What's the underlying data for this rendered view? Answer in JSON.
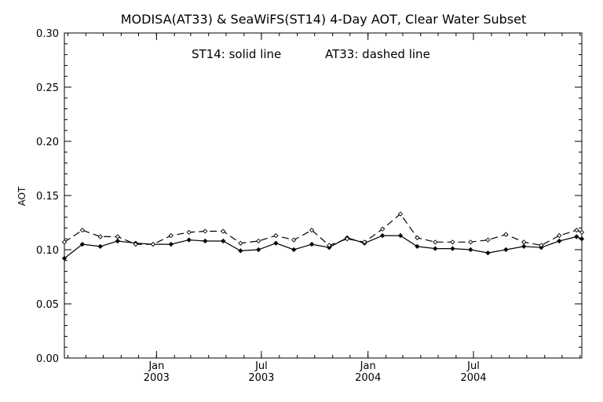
{
  "chart_data": {
    "type": "line",
    "title": "MODISA(AT33) & SeaWiFS(ST14) 4-Day AOT, Clear Water Subset",
    "annotation_left": "ST14: solid line",
    "annotation_right": "AT33: dashed line",
    "ylabel": "AOT",
    "xlabel": "",
    "ylim": [
      0.0,
      0.3
    ],
    "yticks": [
      {
        "value": 0.0,
        "label": "0.00"
      },
      {
        "value": 0.05,
        "label": "0.05"
      },
      {
        "value": 0.1,
        "label": "0.10"
      },
      {
        "value": 0.15,
        "label": "0.15"
      },
      {
        "value": 0.2,
        "label": "0.20"
      },
      {
        "value": 0.25,
        "label": "0.25"
      },
      {
        "value": 0.3,
        "label": "0.30"
      }
    ],
    "xlim": [
      "2002-07-26",
      "2005-01-04"
    ],
    "xticks": [
      {
        "date": "2003-01-01",
        "month": "Jan",
        "year": "2003"
      },
      {
        "date": "2003-07-01",
        "month": "Jul",
        "year": "2003"
      },
      {
        "date": "2004-01-01",
        "month": "Jan",
        "year": "2004"
      },
      {
        "date": "2004-07-01",
        "month": "Jul",
        "year": "2004"
      }
    ],
    "grid": false,
    "x": [
      "2002-07-26",
      "2002-08-26",
      "2002-09-26",
      "2002-10-26",
      "2002-11-26",
      "2002-12-26",
      "2003-01-26",
      "2003-02-26",
      "2003-03-26",
      "2003-04-26",
      "2003-05-26",
      "2003-06-26",
      "2003-07-26",
      "2003-08-26",
      "2003-09-26",
      "2003-10-26",
      "2003-11-26",
      "2003-12-26",
      "2004-01-26",
      "2004-02-26",
      "2004-03-26",
      "2004-04-26",
      "2004-05-26",
      "2004-06-26",
      "2004-07-26",
      "2004-08-26",
      "2004-09-26",
      "2004-10-26",
      "2004-11-26",
      "2004-12-26",
      "2005-01-04"
    ],
    "series": [
      {
        "name": "ST14",
        "style": "solid",
        "color": "#000000",
        "values": [
          0.092,
          0.105,
          0.103,
          0.108,
          0.106,
          0.105,
          0.105,
          0.109,
          0.108,
          0.108,
          0.099,
          0.1,
          0.106,
          0.1,
          0.105,
          0.102,
          0.111,
          0.106,
          0.113,
          0.113,
          0.103,
          0.101,
          0.101,
          0.1,
          0.097,
          0.1,
          0.103,
          0.102,
          0.108,
          0.112,
          0.11
        ]
      },
      {
        "name": "AT33",
        "style": "dashed",
        "color": "#000000",
        "values": [
          0.107,
          0.118,
          0.112,
          0.112,
          0.105,
          0.105,
          0.113,
          0.116,
          0.117,
          0.117,
          0.106,
          0.108,
          0.113,
          0.109,
          0.118,
          0.104,
          0.11,
          0.107,
          0.119,
          0.133,
          0.111,
          0.107,
          0.107,
          0.107,
          0.109,
          0.114,
          0.107,
          0.104,
          0.113,
          0.118,
          0.116
        ]
      }
    ]
  }
}
